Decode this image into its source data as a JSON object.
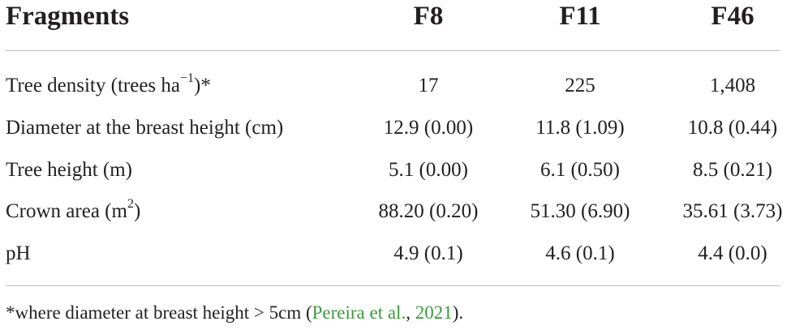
{
  "table": {
    "headers": [
      "Fragments",
      "F8",
      "F11",
      "F46"
    ],
    "rows": [
      {
        "label_main": "Tree density (trees ha",
        "label_sup": "−1",
        "label_tail": ")*",
        "values": [
          "17",
          "225",
          "1,408"
        ]
      },
      {
        "label_main": "Diameter at the breast height (cm)",
        "label_sup": "",
        "label_tail": "",
        "values": [
          "12.9 (0.00)",
          "11.8 (1.09)",
          "10.8 (0.44)"
        ]
      },
      {
        "label_main": "Tree height (m)",
        "label_sup": "",
        "label_tail": "",
        "values": [
          "5.1 (0.00)",
          "6.1 (0.50)",
          "8.5 (0.21)"
        ]
      },
      {
        "label_main": "Crown area (m",
        "label_sup": "2",
        "label_tail": ")",
        "values": [
          "88.20 (0.20)",
          "51.30 (6.90)",
          "35.61 (3.73)"
        ]
      },
      {
        "label_main": "pH",
        "label_sup": "",
        "label_tail": "",
        "values": [
          "4.9 (0.1)",
          "4.6 (0.1)",
          "4.4 (0.0)"
        ]
      }
    ]
  },
  "footnote": {
    "prefix": "*where diameter at breast height > 5cm (",
    "cite_author": "Pereira et al.",
    "cite_sep": ", ",
    "cite_year": "2021",
    "suffix": ").",
    "cite_color": "#3a9a3a"
  }
}
